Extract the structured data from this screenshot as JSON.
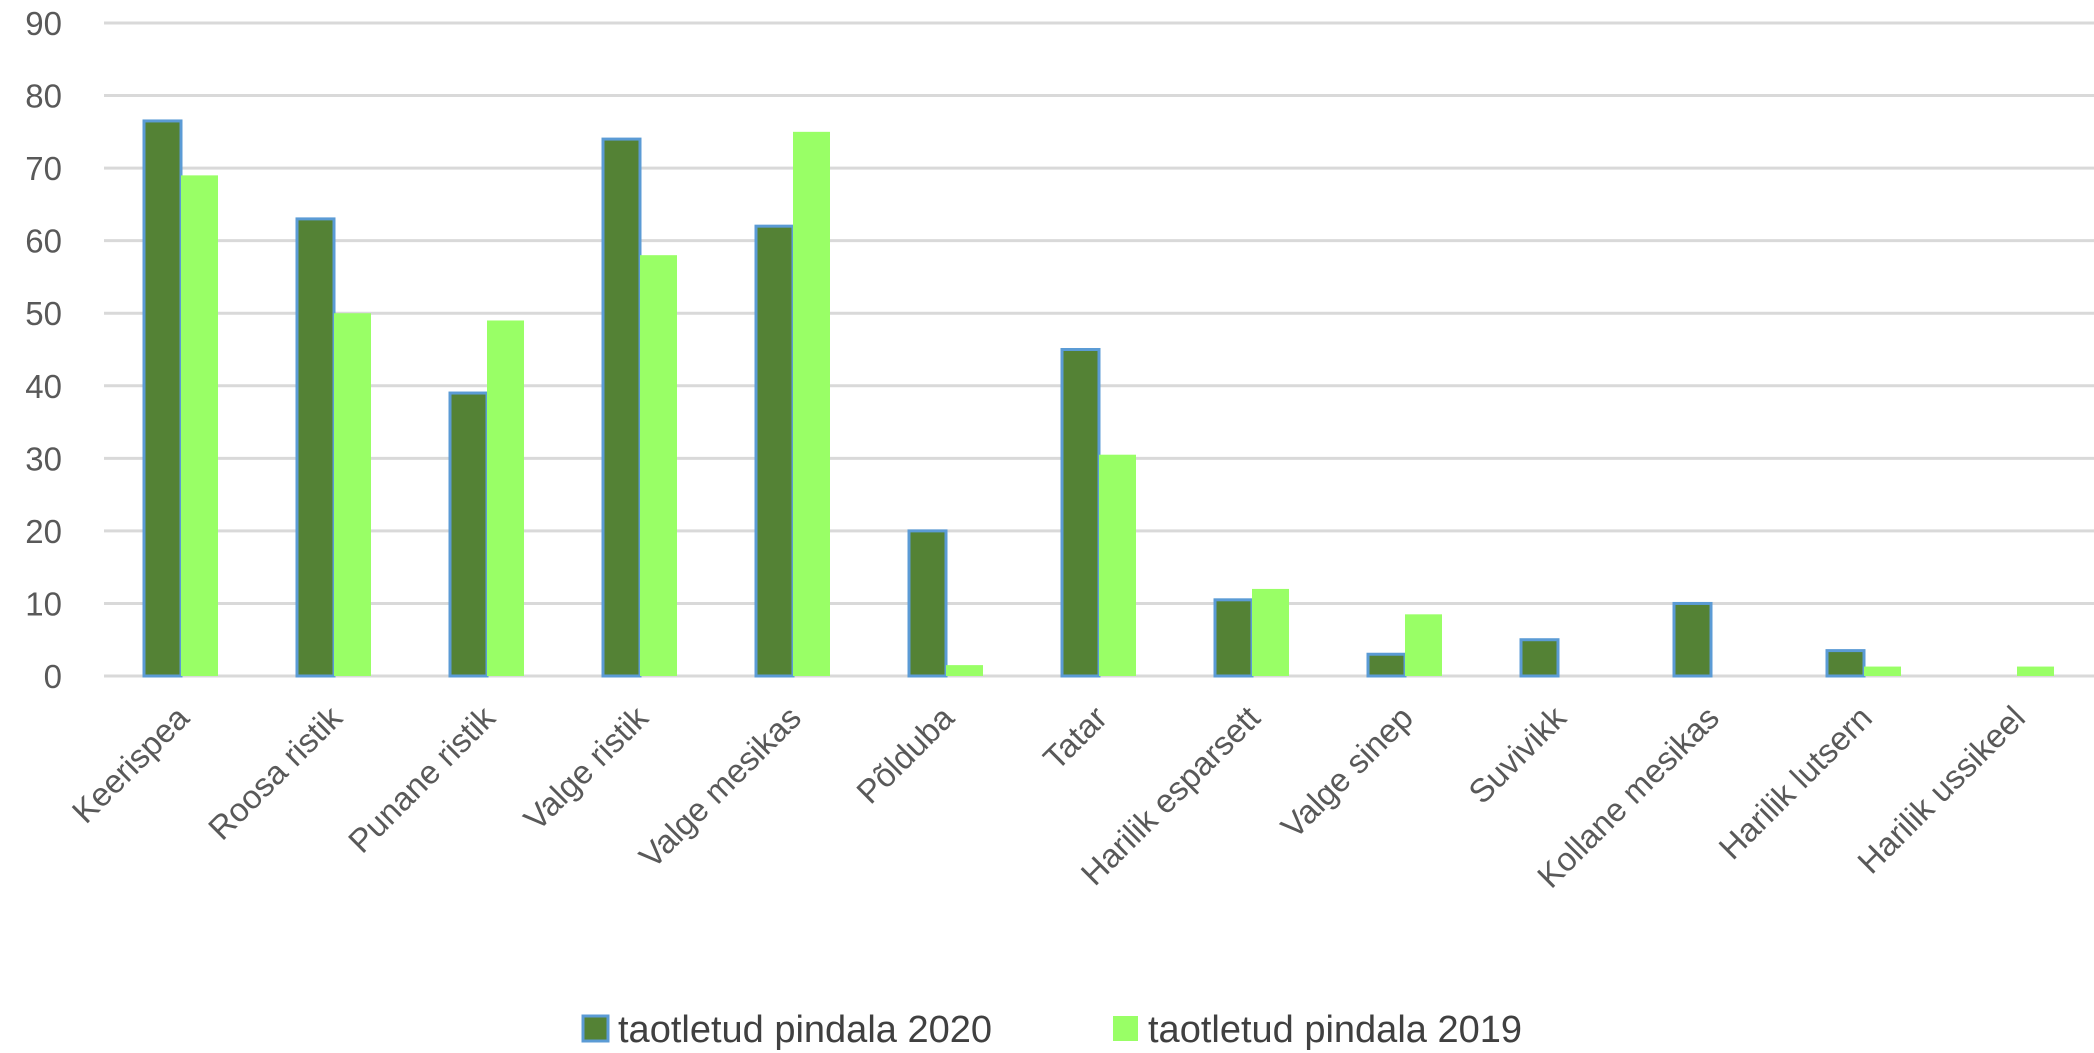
{
  "chart_data": {
    "type": "bar",
    "categories": [
      "Keerispea",
      "Roosa ristik",
      "Punane ristik",
      "Valge ristik",
      "Valge mesikas",
      "Põlduba",
      "Tatar",
      "Harilik esparsett",
      "Valge sinep",
      "Suvivikk",
      "Kollane mesikas",
      "Harilik lutsern",
      "Harilik ussikeel"
    ],
    "series": [
      {
        "name": "taotletud pindala 2020",
        "color": "#548235",
        "border": "#5b9bd5",
        "values": [
          76.5,
          63,
          39,
          74,
          62,
          20,
          45,
          10.5,
          3,
          5,
          10,
          3.5,
          0
        ]
      },
      {
        "name": "taotletud pindala 2019",
        "color": "#99ff66",
        "values": [
          69,
          50,
          49,
          58,
          75,
          1.5,
          30.5,
          12,
          8.5,
          0,
          0,
          1.3,
          1.3
        ]
      }
    ],
    "ylim": [
      0,
      90
    ],
    "yticks": [
      0,
      10,
      20,
      30,
      40,
      50,
      60,
      70,
      80,
      90
    ],
    "grid": true,
    "legend_position": "bottom"
  }
}
